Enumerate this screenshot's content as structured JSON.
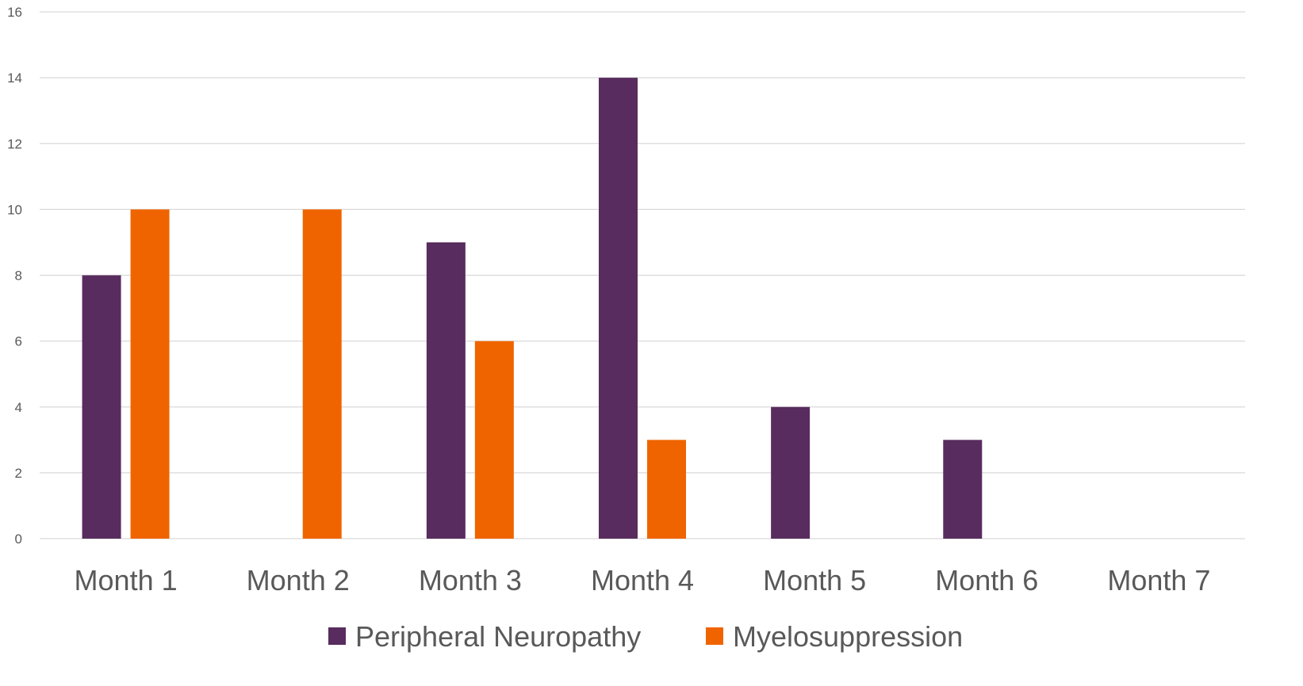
{
  "chart_data": {
    "type": "bar",
    "title": "",
    "xlabel": "",
    "ylabel": "",
    "ylim": [
      0,
      16
    ],
    "yticks": [
      0,
      2,
      4,
      6,
      8,
      10,
      12,
      14,
      16
    ],
    "grid": true,
    "legend_position": "bottom",
    "categories": [
      "Month 1",
      "Month 2",
      "Month 3",
      "Month 4",
      "Month 5",
      "Month 6",
      "Month 7"
    ],
    "series": [
      {
        "name": "Peripheral Neuropathy",
        "color": "#582C5E",
        "values": [
          8,
          0,
          9,
          14,
          4,
          3,
          0
        ]
      },
      {
        "name": "Myelosuppression",
        "color": "#F06400",
        "values": [
          10,
          10,
          6,
          3,
          0,
          0,
          0
        ]
      }
    ]
  }
}
